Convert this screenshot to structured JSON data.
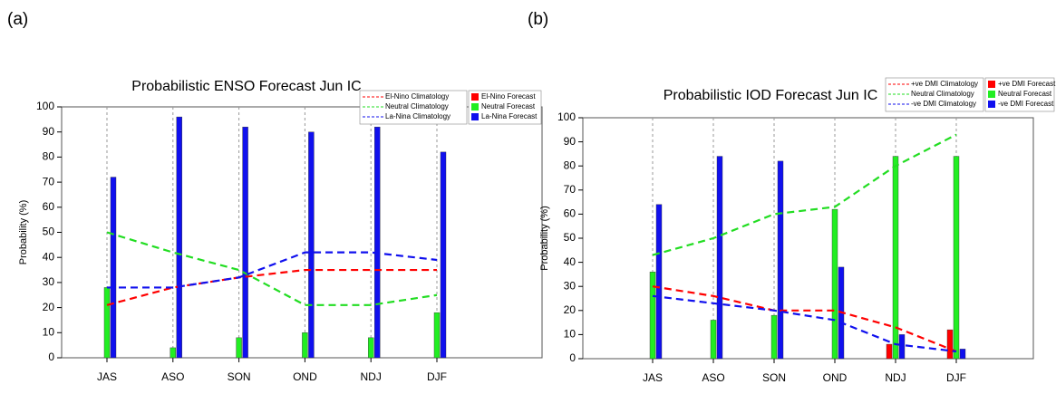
{
  "chart_data": [
    {
      "type": "bar",
      "label": "(a)",
      "title": "Probabilistic ENSO Forecast  Jun IC",
      "y_label": "Probability (%)",
      "categories": [
        "JAS",
        "ASO",
        "SON",
        "OND",
        "NDJ",
        "DJF"
      ],
      "ylim": [
        0,
        100
      ],
      "yticks": [
        0,
        10,
        20,
        30,
        40,
        50,
        60,
        70,
        80,
        90,
        100
      ],
      "grid": true,
      "series": [
        {
          "name": "El-Nino Climatology",
          "mark": "line",
          "color": "#ff0000",
          "values": [
            21,
            28,
            32,
            35,
            35,
            35
          ]
        },
        {
          "name": "Neutral Climatology",
          "mark": "line",
          "color": "#22dd22",
          "values": [
            50,
            42,
            35,
            21,
            21,
            25
          ]
        },
        {
          "name": "La-Nina Climatology",
          "mark": "line",
          "color": "#1010ee",
          "values": [
            28,
            28,
            32,
            42,
            42,
            39
          ]
        },
        {
          "name": "El-Nino Forecast",
          "mark": "bar",
          "color": "#ff0000",
          "values": [
            0,
            0,
            0,
            0,
            0,
            0
          ]
        },
        {
          "name": "Neutral Forecast",
          "mark": "bar",
          "color": "#22ee22",
          "values": [
            28,
            4,
            8,
            10,
            8,
            18
          ]
        },
        {
          "name": "La-Nina Forecast",
          "mark": "bar",
          "color": "#1010ee",
          "values": [
            72,
            96,
            92,
            90,
            92,
            82
          ]
        }
      ]
    },
    {
      "type": "bar",
      "label": "(b)",
      "title": "Probabilistic IOD Forecast  Jun IC",
      "y_label": "Probability (%)",
      "categories": [
        "JAS",
        "ASO",
        "SON",
        "OND",
        "NDJ",
        "DJF"
      ],
      "ylim": [
        0,
        100
      ],
      "yticks": [
        0,
        10,
        20,
        30,
        40,
        50,
        60,
        70,
        80,
        90,
        100
      ],
      "grid": true,
      "series": [
        {
          "name": "+ve DMI Climatology",
          "mark": "line",
          "color": "#ff0000",
          "values": [
            30,
            26,
            20,
            20,
            13,
            3
          ]
        },
        {
          "name": "Neutral Climatology",
          "mark": "line",
          "color": "#22dd22",
          "values": [
            43,
            50,
            60,
            63,
            80,
            93
          ]
        },
        {
          "name": "-ve DMI Climatology",
          "mark": "line",
          "color": "#1010ee",
          "values": [
            26,
            23,
            20,
            16,
            6,
            3
          ]
        },
        {
          "name": "+ve DMI Forecast",
          "mark": "bar",
          "color": "#ff0000",
          "values": [
            0,
            0,
            0,
            0,
            6,
            12
          ]
        },
        {
          "name": "Neutral Forecast",
          "mark": "bar",
          "color": "#22ee22",
          "values": [
            36,
            16,
            18,
            62,
            84,
            84
          ]
        },
        {
          "name": "-ve DMI Forecast",
          "mark": "bar",
          "color": "#1010ee",
          "values": [
            64,
            84,
            82,
            38,
            10,
            4
          ]
        }
      ]
    }
  ]
}
